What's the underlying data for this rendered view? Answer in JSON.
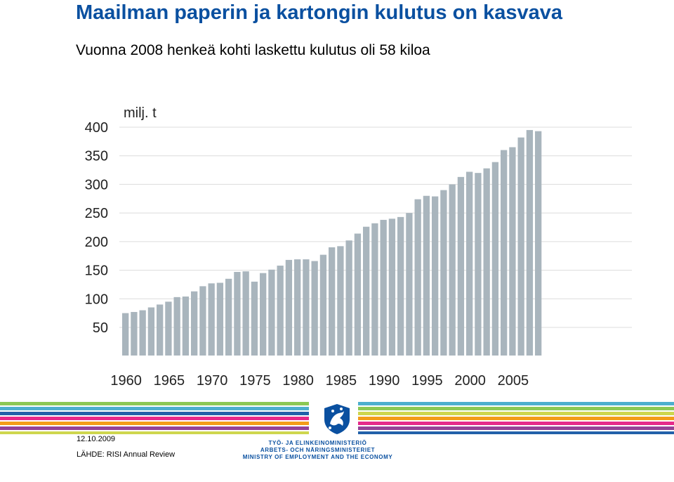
{
  "header": {
    "title": "Maailman paperin ja kartongin kulutus on kasvava",
    "subtitle": "Vuonna 2008 henkeä kohti laskettu kulutus oli 58 kiloa"
  },
  "chart_data": {
    "type": "bar",
    "unit_label": "milj. t",
    "ylim": [
      50,
      400
    ],
    "yticks": [
      50,
      100,
      150,
      200,
      250,
      300,
      350,
      400
    ],
    "xticks": [
      1960,
      1965,
      1970,
      1975,
      1980,
      1985,
      1990,
      1995,
      2000,
      2005
    ],
    "grid": true,
    "bar_color": "#a9b5bd",
    "x": [
      1960,
      1961,
      1962,
      1963,
      1964,
      1965,
      1966,
      1967,
      1968,
      1969,
      1970,
      1971,
      1972,
      1973,
      1974,
      1975,
      1976,
      1977,
      1978,
      1979,
      1980,
      1981,
      1982,
      1983,
      1984,
      1985,
      1986,
      1987,
      1988,
      1989,
      1990,
      1991,
      1992,
      1993,
      1994,
      1995,
      1996,
      1997,
      1998,
      1999,
      2000,
      2001,
      2002,
      2003,
      2004,
      2005,
      2006,
      2007,
      2008
    ],
    "values": [
      75,
      77,
      80,
      85,
      90,
      95,
      103,
      104,
      113,
      122,
      127,
      128,
      135,
      147,
      148,
      130,
      145,
      151,
      158,
      168,
      169,
      169,
      166,
      177,
      190,
      192,
      202,
      214,
      226,
      232,
      238,
      240,
      243,
      250,
      274,
      280,
      279,
      290,
      300,
      313,
      322,
      320,
      328,
      339,
      360,
      365,
      382,
      395,
      393
    ]
  },
  "footer": {
    "date": "12.10.2009",
    "source": "LÄHDE: RISI Annual Review",
    "ministry_fi": "TYÖ- JA ELINKEINOMINISTERIÖ",
    "ministry_sv": "ARBETS- OCH NÄRINGSMINISTERIET",
    "ministry_en": "MINISTRY OF EMPLOYMENT AND THE ECONOMY",
    "stripe_colors": [
      "#7fc241",
      "#3aa6c8",
      "#0a50a0",
      "#e2137d",
      "#f29100",
      "#8a2d8c",
      "#c9d13b"
    ]
  }
}
